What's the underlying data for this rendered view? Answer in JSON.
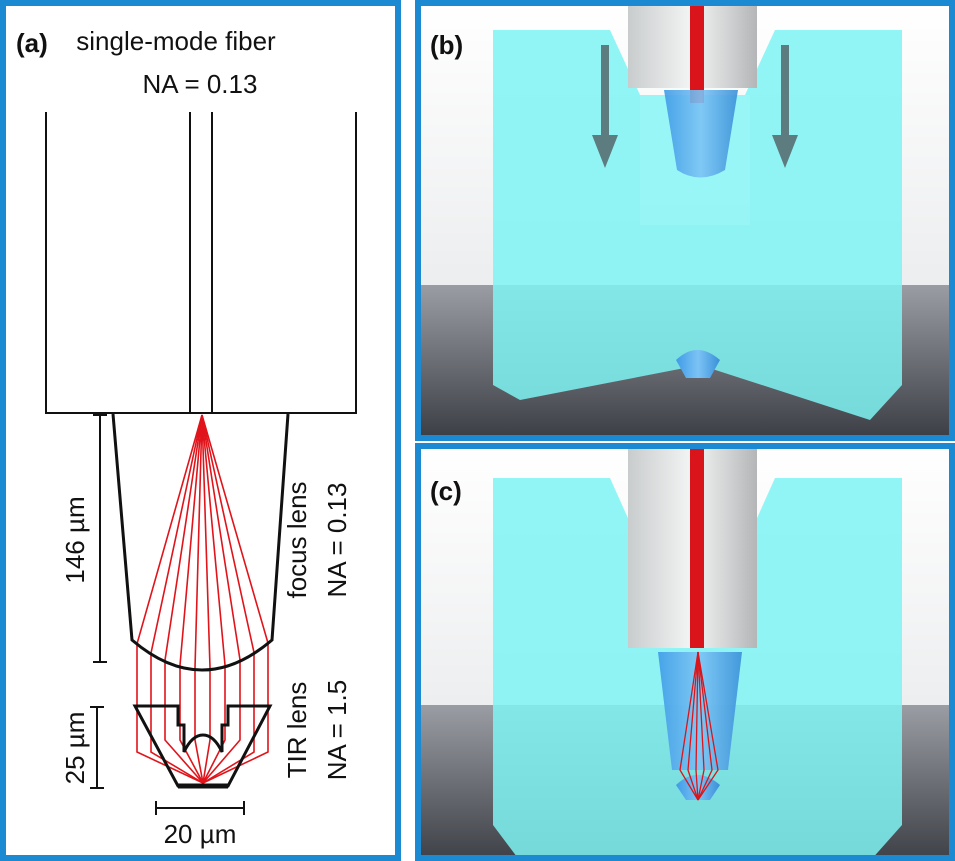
{
  "panels": [
    {
      "label": "(a)",
      "title": "single-mode fiber",
      "subtitle": "NA = 0.13",
      "dimensions": [
        "146 µm",
        "25 µm",
        "20 µm"
      ],
      "lenses": [
        {
          "name": "focus lens",
          "na": "NA = 0.13"
        },
        {
          "name": "TIR lens",
          "na": "NA = 1.5"
        }
      ]
    },
    {
      "label": "(b)"
    },
    {
      "label": "(c)"
    }
  ]
}
